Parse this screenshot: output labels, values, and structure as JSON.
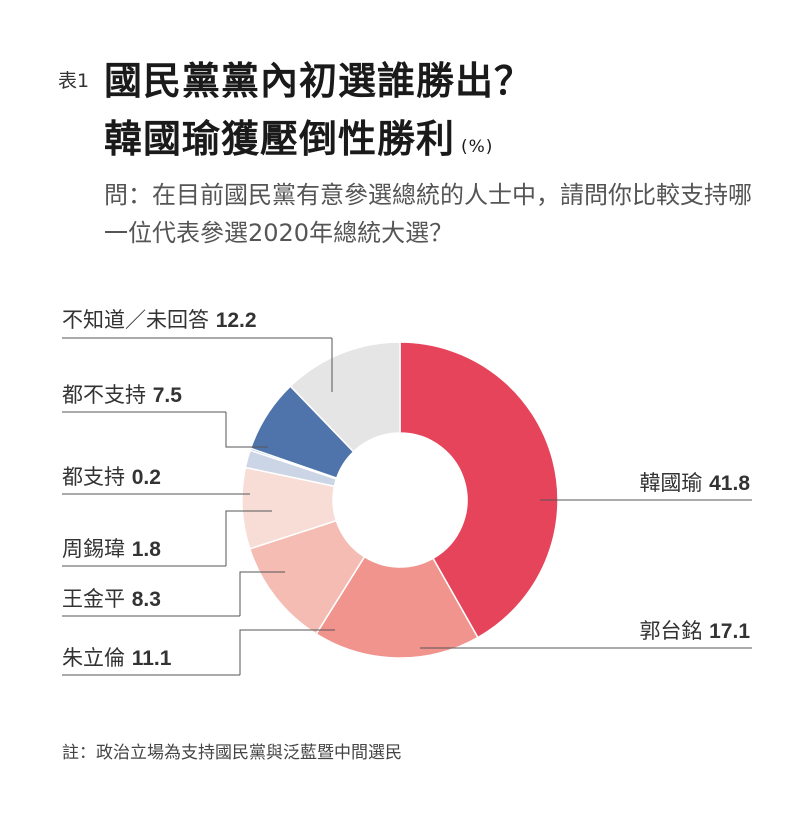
{
  "header": {
    "table_number": "表1",
    "title_line1": "國民黨黨內初選誰勝出？",
    "title_line2": "韓國瑜獲壓倒性勝利",
    "unit": "(%)"
  },
  "question": "問：在目前國民黨有意參選總統的人士中，請問你比較支持哪一位代表參選2020年總統大選？",
  "note": "註：政治立場為支持國民黨與泛藍暨中間選民",
  "chart_data": {
    "type": "pie",
    "title": "國民黨黨內初選誰勝出？韓國瑜獲壓倒性勝利",
    "unit": "(%)",
    "slices": [
      {
        "label": "韓國瑜",
        "value": 41.8,
        "color": "#e5445a"
      },
      {
        "label": "郭台銘",
        "value": 17.1,
        "color": "#f1948e"
      },
      {
        "label": "朱立倫",
        "value": 11.1,
        "color": "#f4bcb2"
      },
      {
        "label": "王金平",
        "value": 8.3,
        "color": "#f8ddd6"
      },
      {
        "label": "周錫瑋",
        "value": 1.8,
        "color": "#ccd5e6"
      },
      {
        "label": "都支持",
        "value": 0.2,
        "color": "#93a9cb"
      },
      {
        "label": "都不支持",
        "value": 7.5,
        "color": "#4f74ac"
      },
      {
        "label": "不知道／未回答",
        "value": 12.2,
        "color": "#e5e5e5"
      }
    ]
  }
}
